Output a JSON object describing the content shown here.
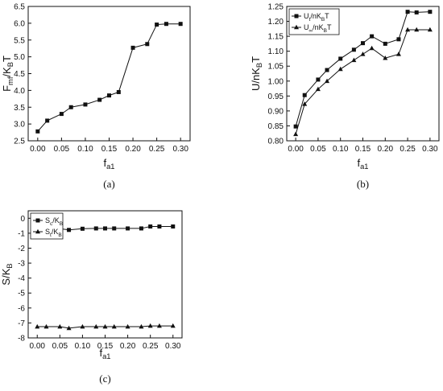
{
  "chart_data": [
    {
      "type": "line",
      "caption": "(a)",
      "xlabel": "fa1",
      "ylabel": "Fmf/KBT",
      "xlim": [
        -0.02,
        0.32
      ],
      "ylim": [
        2.5,
        6.5
      ],
      "xticks": [
        "0.00",
        "0.05",
        "0.10",
        "0.15",
        "0.20",
        "0.25",
        "0.30"
      ],
      "yticks": [
        "2.5",
        "3.0",
        "3.5",
        "4.0",
        "4.5",
        "5.0",
        "5.5",
        "6.0",
        "6.5"
      ],
      "x": [
        0.0,
        0.02,
        0.05,
        0.07,
        0.1,
        0.13,
        0.15,
        0.17,
        0.2,
        0.23,
        0.25,
        0.27,
        0.3
      ],
      "series": [
        {
          "name": "",
          "marker": "square",
          "values": [
            2.78,
            3.1,
            3.3,
            3.5,
            3.58,
            3.72,
            3.85,
            3.95,
            5.27,
            5.38,
            5.96,
            5.98,
            5.98
          ]
        }
      ]
    },
    {
      "type": "line",
      "caption": "(b)",
      "xlabel": "fa1",
      "ylabel": "U/nKBT",
      "xlim": [
        -0.02,
        0.32
      ],
      "ylim": [
        0.8,
        1.25
      ],
      "xticks": [
        "0.00",
        "0.05",
        "0.10",
        "0.15",
        "0.20",
        "0.25",
        "0.30"
      ],
      "yticks": [
        "0.80",
        "0.85",
        "0.90",
        "0.95",
        "1.00",
        "1.05",
        "1.10",
        "1.15",
        "1.20",
        "1.25"
      ],
      "legend": "top-left",
      "x": [
        0.0,
        0.02,
        0.05,
        0.07,
        0.1,
        0.13,
        0.15,
        0.17,
        0.2,
        0.23,
        0.25,
        0.27,
        0.3
      ],
      "series": [
        {
          "name": "Ut/nKBT",
          "marker": "square",
          "values": [
            0.848,
            0.953,
            1.005,
            1.037,
            1.075,
            1.105,
            1.127,
            1.15,
            1.125,
            1.14,
            1.232,
            1.23,
            1.232
          ]
        },
        {
          "name": "U∞/nKBT",
          "marker": "triangle",
          "values": [
            0.822,
            0.923,
            0.973,
            1.0,
            1.04,
            1.07,
            1.09,
            1.11,
            1.077,
            1.09,
            1.172,
            1.172,
            1.172
          ]
        }
      ]
    },
    {
      "type": "line",
      "caption": "(c)",
      "xlabel": "fa1",
      "ylabel": "S/KB",
      "xlim": [
        -0.02,
        0.32
      ],
      "ylim": [
        -8,
        0.5
      ],
      "xticks": [
        "0.00",
        "0.05",
        "0.10",
        "0.15",
        "0.20",
        "0.25",
        "0.30"
      ],
      "yticks": [
        "-8",
        "-7",
        "-6",
        "-5",
        "-4",
        "-3",
        "-2",
        "-1",
        "0"
      ],
      "legend": "top-left",
      "x": [
        0.0,
        0.02,
        0.05,
        0.07,
        0.1,
        0.13,
        0.15,
        0.17,
        0.2,
        0.23,
        0.25,
        0.27,
        0.3
      ],
      "series": [
        {
          "name": "Sc/KB",
          "marker": "square",
          "values": [
            -0.72,
            -0.7,
            -0.7,
            -0.78,
            -0.7,
            -0.68,
            -0.68,
            -0.68,
            -0.68,
            -0.68,
            -0.55,
            -0.55,
            -0.55
          ]
        },
        {
          "name": "St/KB",
          "marker": "triangle",
          "values": [
            -7.25,
            -7.25,
            -7.25,
            -7.35,
            -7.25,
            -7.25,
            -7.25,
            -7.25,
            -7.25,
            -7.25,
            -7.2,
            -7.2,
            -7.2
          ]
        }
      ]
    }
  ]
}
